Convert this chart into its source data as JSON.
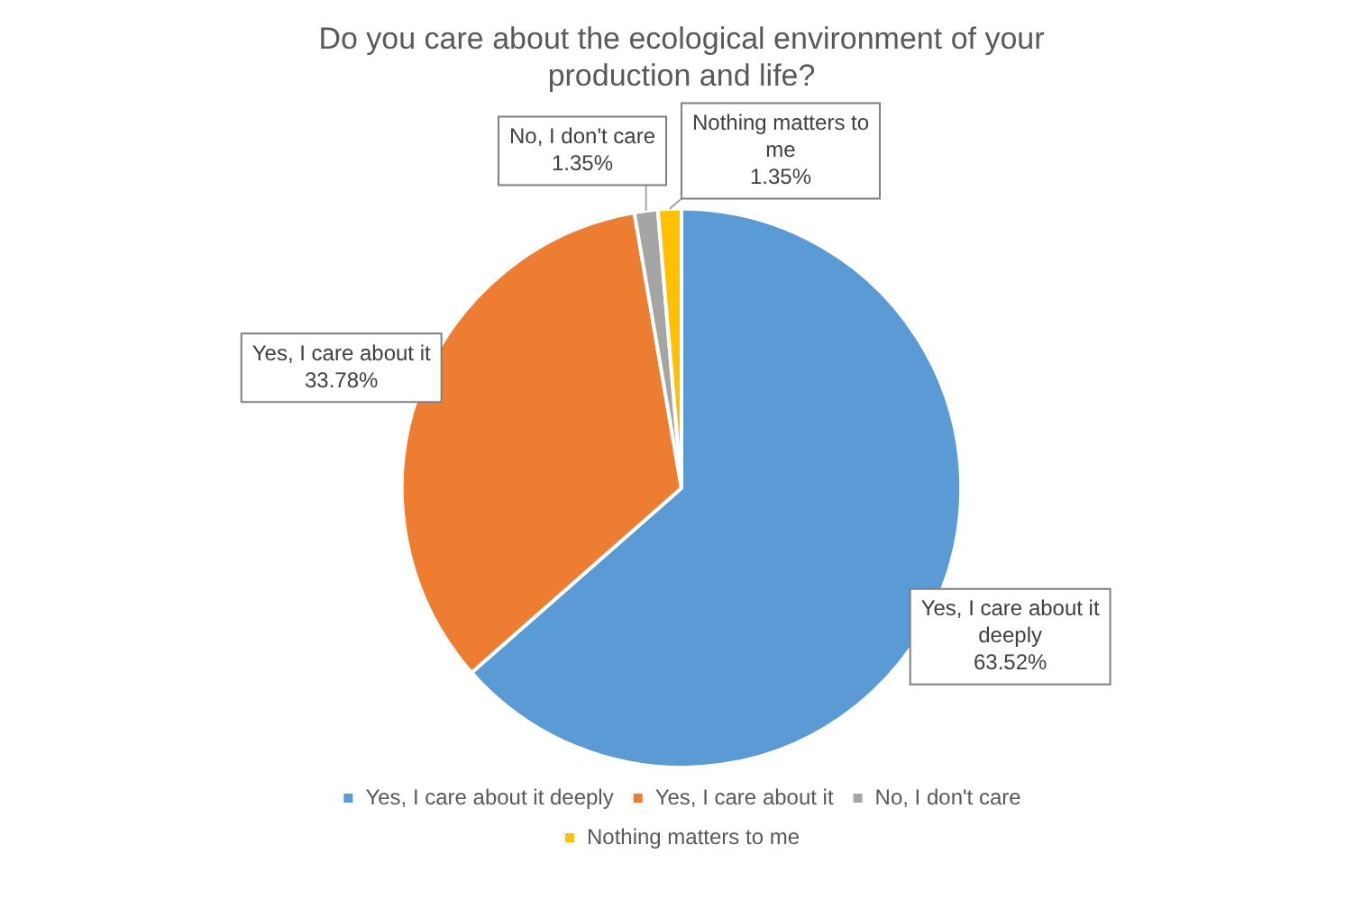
{
  "chart_data": {
    "type": "pie",
    "title": "Do you care about the ecological environment of your production and life?",
    "categories": [
      "Yes, I care about it deeply",
      "Yes, I care about it",
      "No, I don't care",
      "Nothing matters to me"
    ],
    "values": [
      63.52,
      33.78,
      1.35,
      1.35
    ],
    "colors": [
      "#5b9bd5",
      "#ed7d31",
      "#a5a5a5",
      "#ffc000"
    ],
    "value_labels": [
      "63.52%",
      "33.78%",
      "1.35%",
      "1.35%"
    ],
    "legend": "bottom"
  }
}
